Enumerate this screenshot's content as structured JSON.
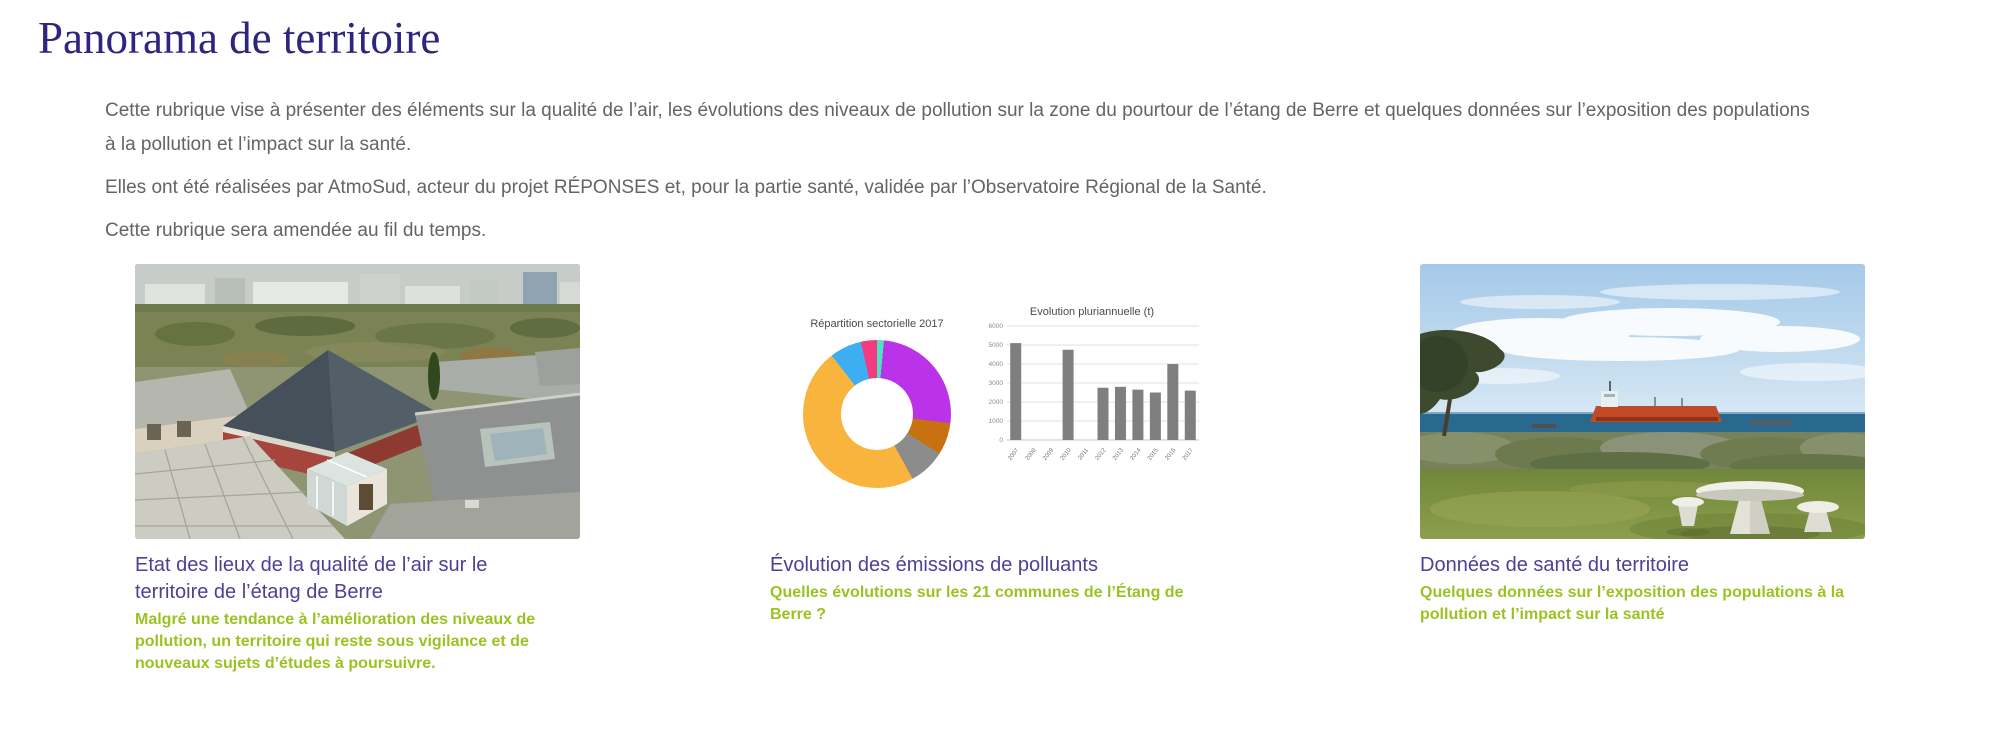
{
  "page": {
    "title": "Panorama de territoire"
  },
  "intro": {
    "paragraph1": "Cette rubrique vise à présenter des éléments sur la qualité de l’air, les évolutions des niveaux de pollution sur la zone du pourtour de l’étang de Berre et quelques données sur l’exposition des populations\nà la pollution et l’impact sur la santé.",
    "paragraph2": "Elles ont été réalisées par AtmoSud, acteur du projet RÉPONSES et, pour la partie santé, validée par l’Observatoire Régional de la Santé.",
    "paragraph3": "Cette rubrique sera amendée au fil du temps."
  },
  "cards": [
    {
      "title": "Etat des lieux de la qualité de l’air sur le\nterritoire de l’étang de Berre",
      "subtitle": "Malgré une tendance à l’amélioration des niveaux de\npollution, un territoire qui reste sous vigilance et de\nnouveaux sujets d’études à poursuivre.",
      "image": "aerial-view-town-etang-de-berre"
    },
    {
      "title": "Évolution des émissions de polluants",
      "subtitle": "Quelles évolutions sur les 21 communes de l’Étang de\nBerre ?",
      "image": "emissions-charts"
    },
    {
      "title": "Données de santé du territoire",
      "subtitle": "Quelques données sur l’exposition des populations à la\npollution et l’impact sur la santé",
      "image": "coastal-view-tanker-picnic-area"
    }
  ],
  "chart_data": [
    {
      "type": "pie",
      "donut": true,
      "title": "Répartition sectorielle 2017",
      "slices": [
        {
          "value": 1.5,
          "color": "#4ee3c1"
        },
        {
          "value": 25.5,
          "color": "#bb33e8"
        },
        {
          "value": 7,
          "color": "#c87111"
        },
        {
          "value": 8,
          "color": "#8c8c8c"
        },
        {
          "value": 47.5,
          "color": "#f9b43e"
        },
        {
          "value": 7,
          "color": "#3daef2"
        },
        {
          "value": 3.5,
          "color": "#f23b80"
        }
      ],
      "legend": false
    },
    {
      "type": "bar",
      "title": "Evolution pluriannuelle (t)",
      "categories": [
        "2007",
        "2008",
        "2009",
        "2010",
        "2011",
        "2012",
        "2013",
        "2014",
        "2015",
        "2016",
        "2017"
      ],
      "values": [
        5100,
        null,
        null,
        4750,
        null,
        2750,
        2800,
        2650,
        2500,
        4000,
        2600
      ],
      "ylim": [
        0,
        6000
      ],
      "ytick_step": 1000,
      "bar_color": "#7f7f7f",
      "grid": true,
      "legend_position": "none"
    }
  ],
  "colors": {
    "heading": "#2e2581",
    "body_text": "#636466",
    "card_title": "#4b4296",
    "card_subtitle_green": "#9cc221",
    "bar_gray": "#7f7f7f"
  }
}
